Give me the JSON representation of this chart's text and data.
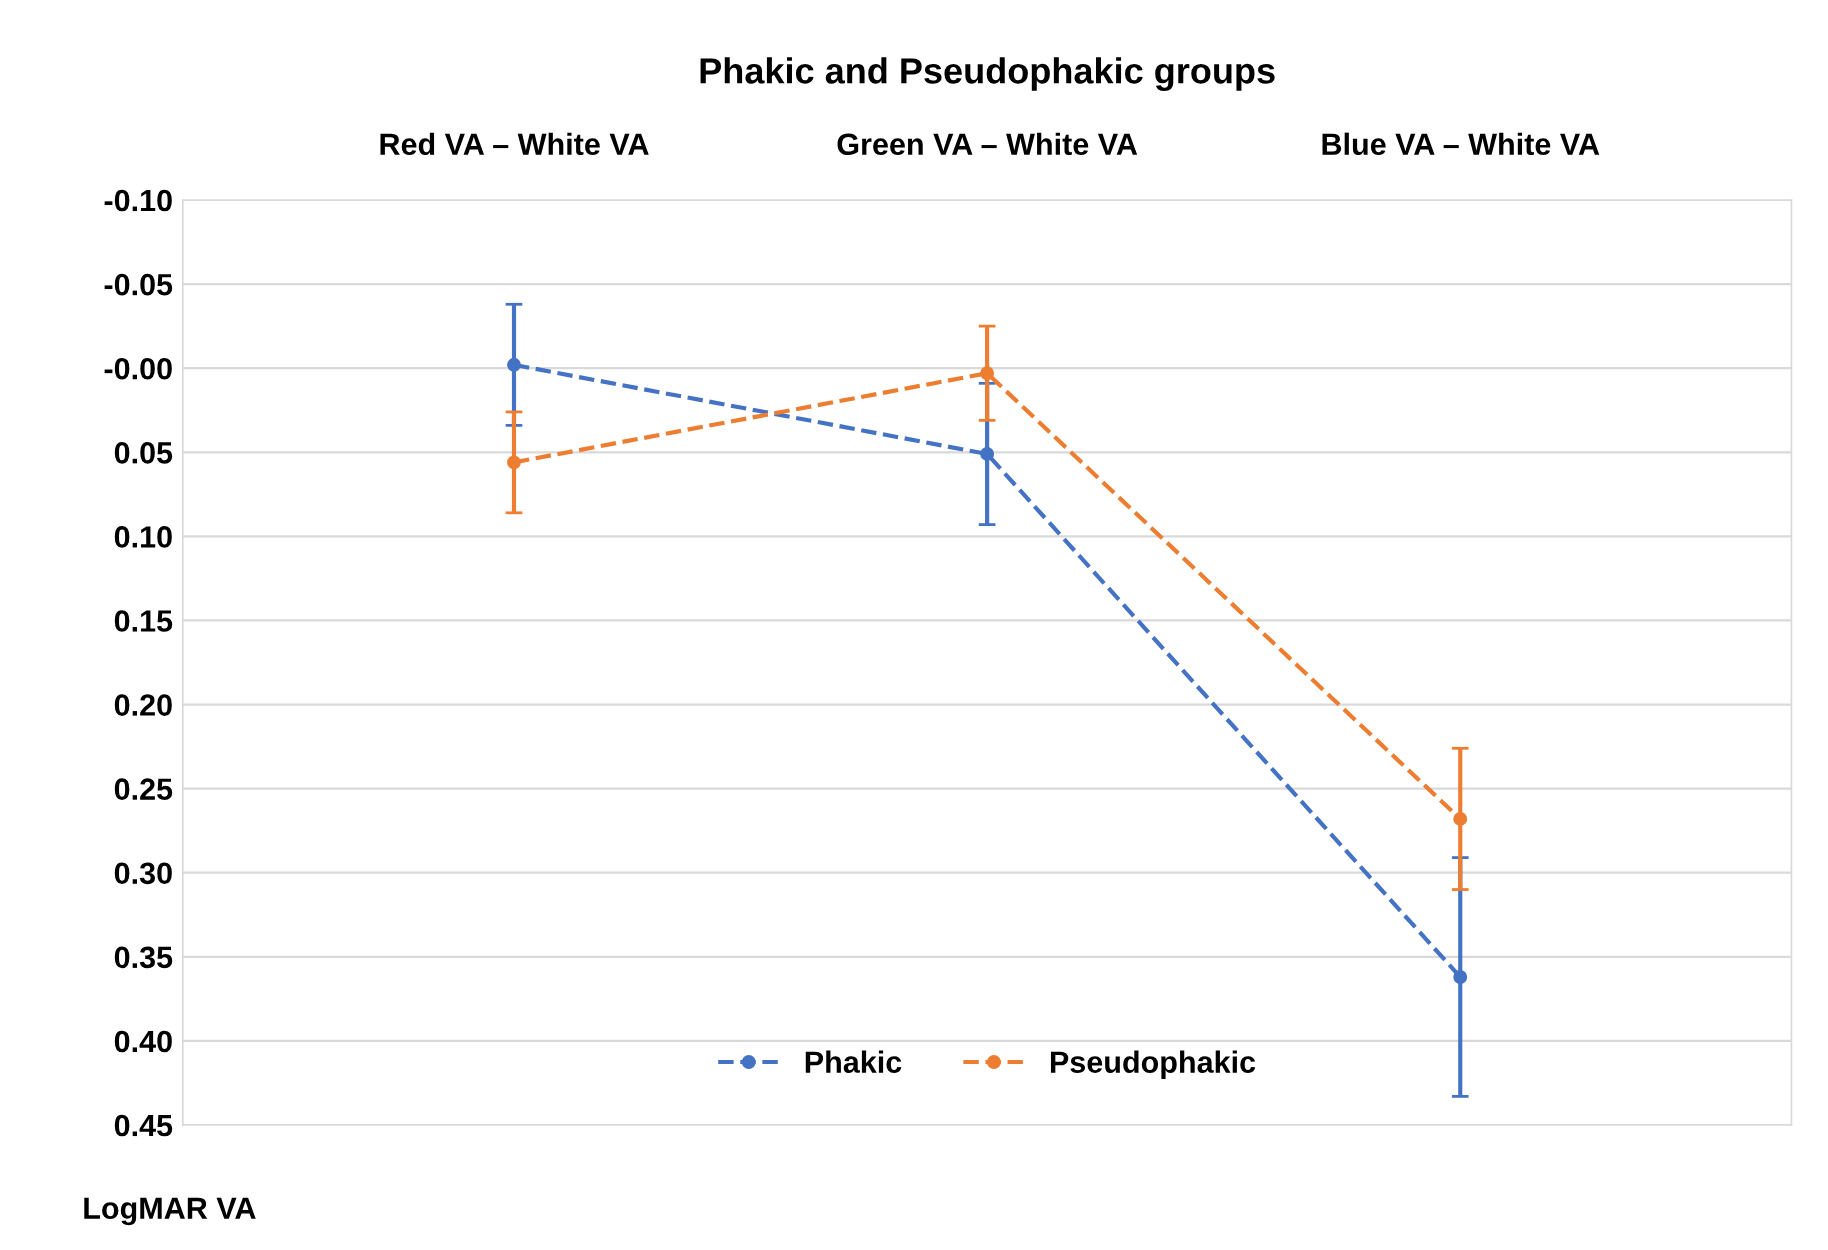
{
  "chart_data": {
    "type": "line",
    "title": "Phakic and Pseudophakic groups",
    "ylabel": "LogMAR VA",
    "categories": [
      "Red VA – White VA",
      "Green VA – White VA",
      "Blue VA – White VA"
    ],
    "series": [
      {
        "name": "Phakic",
        "color": "#4472c4",
        "values": [
          -0.002,
          0.051,
          0.362
        ],
        "errors": [
          0.036,
          0.042,
          0.071
        ]
      },
      {
        "name": "Pseudophakic",
        "color": "#ed7d31",
        "values": [
          0.056,
          0.003,
          0.268
        ],
        "errors": [
          0.03,
          0.028,
          0.042
        ]
      }
    ],
    "ylim": [
      0.45,
      -0.1
    ],
    "yticks": [
      {
        "value": -0.1,
        "label": "-0.10"
      },
      {
        "value": -0.05,
        "label": "-0.05"
      },
      {
        "value": 0,
        "label": "-0.00"
      },
      {
        "value": 0.05,
        "label": "0.05"
      },
      {
        "value": 0.1,
        "label": "0.10"
      },
      {
        "value": 0.15,
        "label": "0.15"
      },
      {
        "value": 0.2,
        "label": "0.20"
      },
      {
        "value": 0.25,
        "label": "0.25"
      },
      {
        "value": 0.3,
        "label": "0.30"
      },
      {
        "value": 0.35,
        "label": "0.35"
      },
      {
        "value": 0.4,
        "label": "0.40"
      },
      {
        "value": 0.45,
        "label": "0.45"
      }
    ],
    "grid": "y",
    "legend": "bottom",
    "marker": "circle",
    "line_style": "dashed"
  }
}
